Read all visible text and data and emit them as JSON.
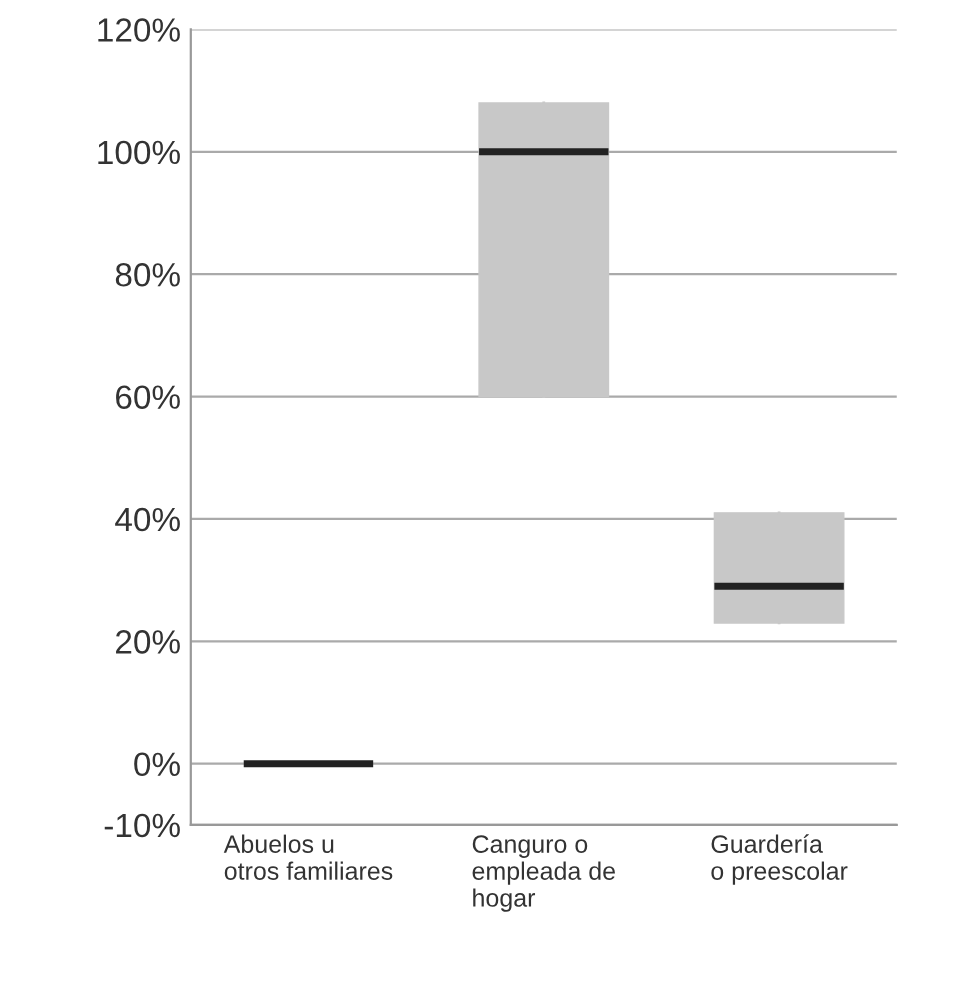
{
  "chart_data": {
    "type": "box",
    "categories": [
      "Abuelos u\notros familiares",
      "Canguro o\nempleada de\nhogar",
      "Guardería\no preescolar"
    ],
    "series": [
      {
        "color": "#c8c8c8",
        "boxes": [
          {
            "low": 0,
            "q1": 0,
            "median": 0,
            "q3": 0,
            "high": 0
          },
          {
            "low": 60,
            "q1": 60,
            "median": 100,
            "q3": 108,
            "high": 108
          },
          {
            "low": 23,
            "q1": 23,
            "median": 29,
            "q3": 41,
            "high": 41
          }
        ]
      }
    ],
    "ylim": [
      -10,
      120
    ],
    "yticks": [
      {
        "value": -10,
        "label": "-10%"
      },
      {
        "value": 0,
        "label": "0%"
      },
      {
        "value": 20,
        "label": "20%"
      },
      {
        "value": 40,
        "label": "40%"
      },
      {
        "value": 60,
        "label": "60%"
      },
      {
        "value": 80,
        "label": "80%"
      },
      {
        "value": 100,
        "label": "100%"
      },
      {
        "value": 120,
        "label": "120%"
      }
    ],
    "grid": "y"
  }
}
